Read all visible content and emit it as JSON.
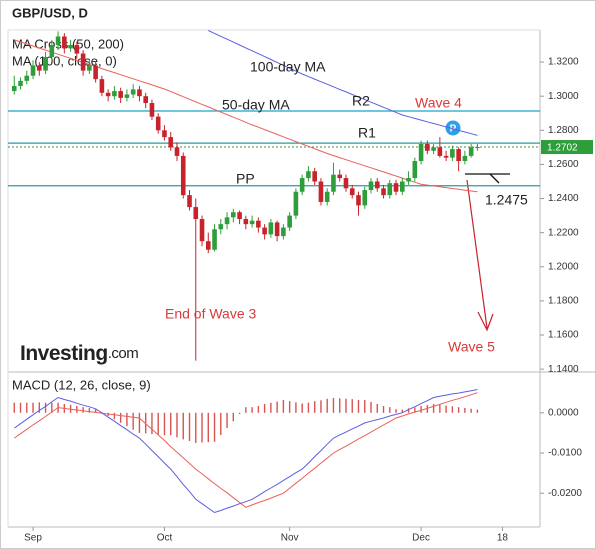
{
  "chart_data": [
    {
      "type": "candlestick",
      "title": "GBP/USD, D",
      "xlim": [
        -1,
        84
      ],
      "ylim": [
        1.1395,
        1.3388
      ],
      "yticks": [
        {
          "value": 1.32,
          "label": "1.3200"
        },
        {
          "value": 1.3,
          "label": "1.3000"
        },
        {
          "value": 1.28,
          "label": "1.2800"
        },
        {
          "value": 1.26,
          "label": "1.2600"
        },
        {
          "value": 1.24,
          "label": "1.2400"
        },
        {
          "value": 1.22,
          "label": "1.2200"
        },
        {
          "value": 1.2,
          "label": "1.2000"
        },
        {
          "value": 1.18,
          "label": "1.1800"
        },
        {
          "value": 1.16,
          "label": "1.1600"
        },
        {
          "value": 1.14,
          "label": "1.1400"
        }
      ],
      "up_color": "#2e9e3a",
      "down_color": "#c8232c",
      "open": [
        1.303,
        1.306,
        1.309,
        1.312,
        1.318,
        1.315,
        1.323,
        1.33,
        1.335,
        1.328,
        1.33,
        1.325,
        1.315,
        1.318,
        1.31,
        1.302,
        1.3,
        1.303,
        1.299,
        1.301,
        1.304,
        1.3,
        1.296,
        1.288,
        1.28,
        1.276,
        1.27,
        1.265,
        1.242,
        1.235,
        1.228,
        1.215,
        1.21,
        1.222,
        1.225,
        1.229,
        1.232,
        1.228,
        1.225,
        1.227,
        1.223,
        1.219,
        1.226,
        1.218,
        1.223,
        1.23,
        1.244,
        1.252,
        1.256,
        1.25,
        1.238,
        1.244,
        1.254,
        1.252,
        1.246,
        1.242,
        1.236,
        1.245,
        1.25,
        1.246,
        1.242,
        1.249,
        1.244,
        1.25,
        1.252,
        1.262,
        1.272,
        1.268,
        1.27,
        1.265,
        1.264,
        1.269,
        1.262,
        1.265,
        1.27
      ],
      "high": [
        1.312,
        1.311,
        1.315,
        1.321,
        1.32,
        1.326,
        1.333,
        1.338,
        1.337,
        1.333,
        1.332,
        1.327,
        1.321,
        1.32,
        1.312,
        1.304,
        1.306,
        1.305,
        1.304,
        1.307,
        1.306,
        1.302,
        1.298,
        1.29,
        1.283,
        1.279,
        1.273,
        1.267,
        1.245,
        1.24,
        1.23,
        1.22,
        1.225,
        1.228,
        1.232,
        1.234,
        1.233,
        1.23,
        1.23,
        1.229,
        1.225,
        1.228,
        1.227,
        1.225,
        1.232,
        1.246,
        1.254,
        1.259,
        1.258,
        1.252,
        1.246,
        1.261,
        1.257,
        1.254,
        1.248,
        1.244,
        1.247,
        1.252,
        1.252,
        1.248,
        1.251,
        1.251,
        1.252,
        1.256,
        1.264,
        1.274,
        1.274,
        1.272,
        1.276,
        1.268,
        1.271,
        1.27,
        1.268,
        1.272,
        1.272
      ],
      "low": [
        1.301,
        1.304,
        1.307,
        1.31,
        1.312,
        1.313,
        1.321,
        1.327,
        1.325,
        1.326,
        1.322,
        1.312,
        1.313,
        1.308,
        1.3,
        1.297,
        1.298,
        1.296,
        1.297,
        1.299,
        1.297,
        1.293,
        1.286,
        1.278,
        1.274,
        1.268,
        1.262,
        1.24,
        1.233,
        1.145,
        1.212,
        1.208,
        1.209,
        1.219,
        1.222,
        1.226,
        1.225,
        1.222,
        1.223,
        1.22,
        1.216,
        1.217,
        1.215,
        1.216,
        1.221,
        1.228,
        1.242,
        1.25,
        1.248,
        1.236,
        1.236,
        1.242,
        1.25,
        1.244,
        1.24,
        1.23,
        1.234,
        1.243,
        1.244,
        1.24,
        1.24,
        1.242,
        1.242,
        1.248,
        1.25,
        1.26,
        1.266,
        1.266,
        1.264,
        1.262,
        1.262,
        1.256,
        1.26,
        1.264,
        1.268
      ],
      "close": [
        1.306,
        1.309,
        1.312,
        1.318,
        1.315,
        1.323,
        1.33,
        1.335,
        1.328,
        1.33,
        1.325,
        1.315,
        1.318,
        1.31,
        1.302,
        1.3,
        1.303,
        1.299,
        1.301,
        1.304,
        1.3,
        1.296,
        1.288,
        1.28,
        1.276,
        1.27,
        1.265,
        1.242,
        1.235,
        1.228,
        1.215,
        1.21,
        1.222,
        1.225,
        1.229,
        1.232,
        1.228,
        1.225,
        1.227,
        1.223,
        1.219,
        1.226,
        1.218,
        1.223,
        1.23,
        1.244,
        1.252,
        1.256,
        1.25,
        1.238,
        1.244,
        1.254,
        1.252,
        1.246,
        1.242,
        1.236,
        1.245,
        1.25,
        1.246,
        1.242,
        1.249,
        1.244,
        1.25,
        1.252,
        1.262,
        1.272,
        1.268,
        1.27,
        1.265,
        1.264,
        1.269,
        1.262,
        1.265,
        1.27,
        1.2702
      ],
      "series": [
        {
          "name": "MA Cross (50, 200)",
          "color": "#e8615a",
          "values": [
            1.333,
            1.3318,
            1.3306,
            1.3294,
            1.3282,
            1.327,
            1.3258,
            1.3246,
            1.3234,
            1.3222,
            1.321,
            1.3198,
            1.3186,
            1.3174,
            1.3162,
            1.315,
            1.3138,
            1.3126,
            1.3114,
            1.3102,
            1.309,
            1.3078,
            1.3066,
            1.3054,
            1.3042,
            1.3027,
            1.3012,
            1.2997,
            1.2982,
            1.2967,
            1.2952,
            1.2937,
            1.2922,
            1.2907,
            1.2892,
            1.2877,
            1.2862,
            1.2847,
            1.2832,
            1.2818,
            1.2804,
            1.279,
            1.2776,
            1.2762,
            1.2748,
            1.2734,
            1.272,
            1.2706,
            1.2692,
            1.2678,
            1.2664,
            1.2652,
            1.264,
            1.2628,
            1.2616,
            1.2604,
            1.2592,
            1.258,
            1.2568,
            1.2556,
            1.2544,
            1.2532,
            1.252,
            1.2508,
            1.2496,
            1.2484,
            1.2479,
            1.2474,
            1.2469,
            1.2464,
            1.2459,
            1.2454,
            1.2449,
            1.2444,
            1.244
          ]
        },
        {
          "name": "MA (100, close, 0)",
          "color": "#5a5fe0",
          "values": [
            null,
            null,
            null,
            null,
            null,
            null,
            null,
            null,
            null,
            null,
            null,
            null,
            null,
            null,
            null,
            null,
            null,
            null,
            null,
            null,
            null,
            null,
            null,
            null,
            null,
            null,
            null,
            null,
            null,
            null,
            null,
            1.3385,
            1.3368,
            1.3351,
            1.3334,
            1.3317,
            1.33,
            1.3283,
            1.3266,
            1.3249,
            1.3232,
            1.3215,
            1.3198,
            1.3181,
            1.3164,
            1.3147,
            1.313,
            1.3115,
            1.31,
            1.3085,
            1.307,
            1.3055,
            1.304,
            1.3025,
            1.301,
            1.2995,
            1.298,
            1.2965,
            1.295,
            1.2935,
            1.292,
            1.2905,
            1.289,
            1.288,
            1.287,
            1.286,
            1.285,
            1.284,
            1.283,
            1.282,
            1.281,
            1.28,
            1.279,
            1.278,
            1.277
          ]
        }
      ],
      "levels": [
        {
          "name": "R2",
          "value": 1.2913,
          "color": "#1aa5c8"
        },
        {
          "name": "R1",
          "value": 1.2725,
          "color": "#2a9aa8"
        },
        {
          "name": "PP",
          "value": 1.2475,
          "value_label": "1.2475",
          "color": "#2a9aa8"
        }
      ],
      "last_price": {
        "value": 1.2702,
        "label": "1.2702",
        "color": "#2e9e3a"
      },
      "annotations": [
        {
          "text": "100-day MA",
          "color": "#222222"
        },
        {
          "text": "50-day MA",
          "color": "#222222"
        },
        {
          "text": "End of Wave 3",
          "color": "#d93a3a"
        },
        {
          "text": "Wave 4",
          "color": "#d93a3a"
        },
        {
          "text": "Wave 5",
          "color": "#d93a3a"
        }
      ]
    },
    {
      "type": "macd",
      "title": "MACD (12, 26, close, 9)",
      "xlim": [
        -1,
        84
      ],
      "ylim": [
        -0.0279,
        0.0094
      ],
      "xticks": [
        {
          "value": 3,
          "label": "Sep"
        },
        {
          "value": 24,
          "label": "Oct"
        },
        {
          "value": 44,
          "label": "Nov"
        },
        {
          "value": 65,
          "label": "Dec"
        },
        {
          "value": 78,
          "label": "18"
        }
      ],
      "yticks": [
        {
          "value": 0,
          "label": "0.0000"
        },
        {
          "value": -0.01,
          "label": "-0.0100"
        },
        {
          "value": -0.02,
          "label": "-0.0200"
        }
      ],
      "histogram_color": "#d9534f",
      "histogram": [
        0.0025,
        0.0025,
        0.0025,
        0.0025,
        0.0026,
        0.0025,
        0.0025,
        0.0025,
        0.0022,
        0.002,
        0.0017,
        0.0014,
        0.0012,
        0.0009,
        0.0001,
        -0.0008,
        -0.0016,
        -0.0025,
        -0.0033,
        -0.0042,
        -0.005,
        -0.0051,
        -0.0053,
        -0.0054,
        -0.0056,
        -0.0056,
        -0.0061,
        -0.0066,
        -0.007,
        -0.0075,
        -0.0074,
        -0.0073,
        -0.0072,
        -0.0055,
        -0.0038,
        -0.0021,
        -0.0003,
        0.0014,
        0.0014,
        0.0017,
        0.0022,
        0.0025,
        0.0028,
        0.0032,
        0.0029,
        0.0026,
        0.0023,
        0.0025,
        0.0029,
        0.0031,
        0.0035,
        0.0037,
        0.0036,
        0.0035,
        0.0034,
        0.0032,
        0.0032,
        0.0027,
        0.0022,
        0.0017,
        0.0014,
        0.0009,
        0.0008,
        0.0011,
        0.0013,
        0.0017,
        0.0019,
        0.0022,
        0.002,
        0.0018,
        0.0016,
        0.0014,
        0.0012,
        0.001,
        0.0008
      ],
      "macd_color": "#5a5fe0",
      "macd": [
        -0.0038,
        -0.0027,
        -0.0016,
        -0.0005,
        0.0006,
        0.0016,
        0.0027,
        0.0038,
        0.0033,
        0.0029,
        0.0024,
        0.0019,
        0.0015,
        0.001,
        0.0,
        -0.0011,
        -0.0021,
        -0.0032,
        -0.0042,
        -0.0053,
        -0.0063,
        -0.0078,
        -0.0094,
        -0.0109,
        -0.0125,
        -0.014,
        -0.0159,
        -0.0178,
        -0.0196,
        -0.0215,
        -0.0226,
        -0.0237,
        -0.0248,
        -0.0243,
        -0.0237,
        -0.0232,
        -0.0226,
        -0.0221,
        -0.0215,
        -0.0206,
        -0.0196,
        -0.0187,
        -0.0178,
        -0.0168,
        -0.0159,
        -0.0149,
        -0.014,
        -0.0125,
        -0.0109,
        -0.0094,
        -0.0078,
        -0.0063,
        -0.0055,
        -0.0048,
        -0.004,
        -0.0033,
        -0.0025,
        -0.0021,
        -0.0017,
        -0.0013,
        -0.0008,
        -0.0004,
        0.0,
        0.0008,
        0.0015,
        0.0023,
        0.003,
        0.0038,
        0.0041,
        0.0044,
        0.0047,
        0.0049,
        0.0052,
        0.0055,
        0.0058
      ],
      "signal_color": "#e8615a",
      "signal": [
        -0.0063,
        -0.0052,
        -0.0041,
        -0.003,
        -0.002,
        -0.0009,
        0.0002,
        0.0013,
        0.0011,
        0.0009,
        0.0007,
        0.0005,
        0.0003,
        0.0001,
        -0.0001,
        -0.0003,
        -0.0005,
        -0.0007,
        -0.0009,
        -0.0011,
        -0.0013,
        -0.0027,
        -0.0041,
        -0.0055,
        -0.0069,
        -0.0084,
        -0.0098,
        -0.0112,
        -0.0126,
        -0.014,
        -0.0152,
        -0.0164,
        -0.0176,
        -0.0188,
        -0.0199,
        -0.0211,
        -0.0223,
        -0.0235,
        -0.0229,
        -0.0223,
        -0.0218,
        -0.0212,
        -0.0206,
        -0.02,
        -0.0188,
        -0.0175,
        -0.0163,
        -0.015,
        -0.0138,
        -0.0125,
        -0.0113,
        -0.01,
        -0.0091,
        -0.0083,
        -0.0074,
        -0.0065,
        -0.0057,
        -0.0048,
        -0.0039,
        -0.003,
        -0.0022,
        -0.0013,
        -0.0008,
        -0.0003,
        0.0002,
        0.0006,
        0.0011,
        0.0016,
        0.0021,
        0.0026,
        0.0031,
        0.0035,
        0.004,
        0.0045,
        0.005
      ]
    }
  ],
  "brand": {
    "name": "Investing",
    "suffix": ".com"
  }
}
